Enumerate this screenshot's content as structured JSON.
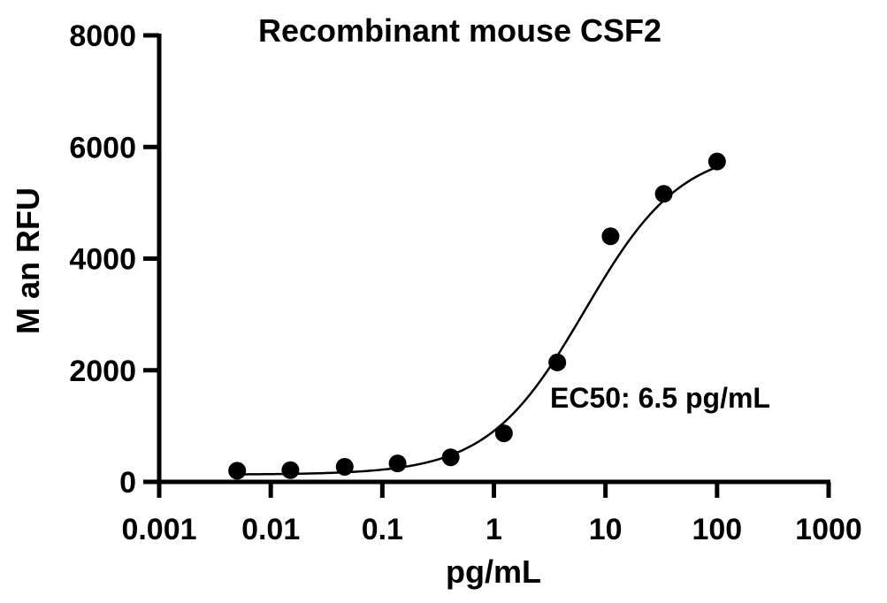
{
  "chart_data": {
    "type": "scatter",
    "title": "Recombinant mouse CSF2",
    "xlabel": "pg/mL",
    "ylabel": "M  an RFU",
    "xscale": "log",
    "xlim": [
      0.001,
      1000
    ],
    "ylim": [
      0,
      8000
    ],
    "xticks": [
      "0.001",
      "0.01",
      "0.1",
      "1",
      "10",
      "100",
      "1000"
    ],
    "xtick_values": [
      0.001,
      0.01,
      0.1,
      1,
      10,
      100,
      1000
    ],
    "yticks": [
      "0",
      "2000",
      "4000",
      "6000",
      "8000"
    ],
    "ytick_values": [
      0,
      2000,
      4000,
      6000,
      8000
    ],
    "annotation": "EC50: 6.5 pg/mL",
    "series": [
      {
        "name": "Recombinant mouse CSF2",
        "x": [
          0.005,
          0.015,
          0.046,
          0.137,
          0.41,
          1.23,
          3.7,
          11.1,
          33.3,
          100
        ],
        "y": [
          200,
          210,
          270,
          330,
          440,
          870,
          2140,
          4400,
          5160,
          5740
        ]
      }
    ],
    "fit": {
      "model": "4PL",
      "bottom": 130,
      "top": 6000,
      "ec50": 6.5,
      "hill": 1.0
    },
    "grid": false
  }
}
